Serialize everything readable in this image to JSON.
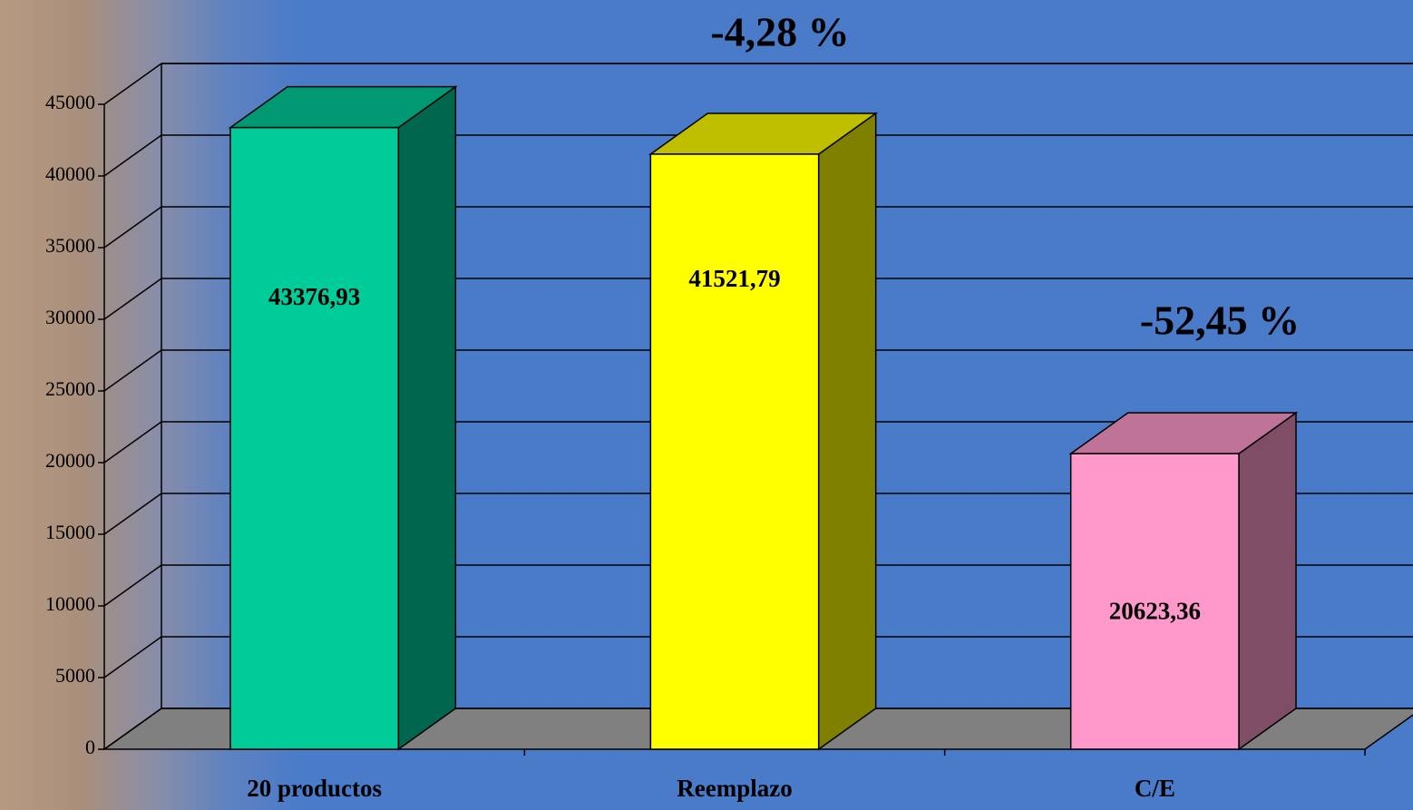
{
  "chart_data": {
    "type": "bar3d",
    "categories": [
      "20 productos",
      "Reemplazo",
      "C/E"
    ],
    "values": [
      43376.93,
      41521.79,
      20623.36
    ],
    "value_labels": [
      "43376,93",
      "41521,79",
      "20623,36"
    ],
    "colors": [
      "#00cc99",
      "#ffff00",
      "#ff99cc"
    ],
    "ylim": [
      0,
      45000
    ],
    "yticks": [
      0,
      5000,
      10000,
      15000,
      20000,
      25000,
      30000,
      35000,
      40000,
      45000
    ],
    "grid": true,
    "annotations": [
      "-4,28 %",
      "-52,45 %"
    ]
  }
}
